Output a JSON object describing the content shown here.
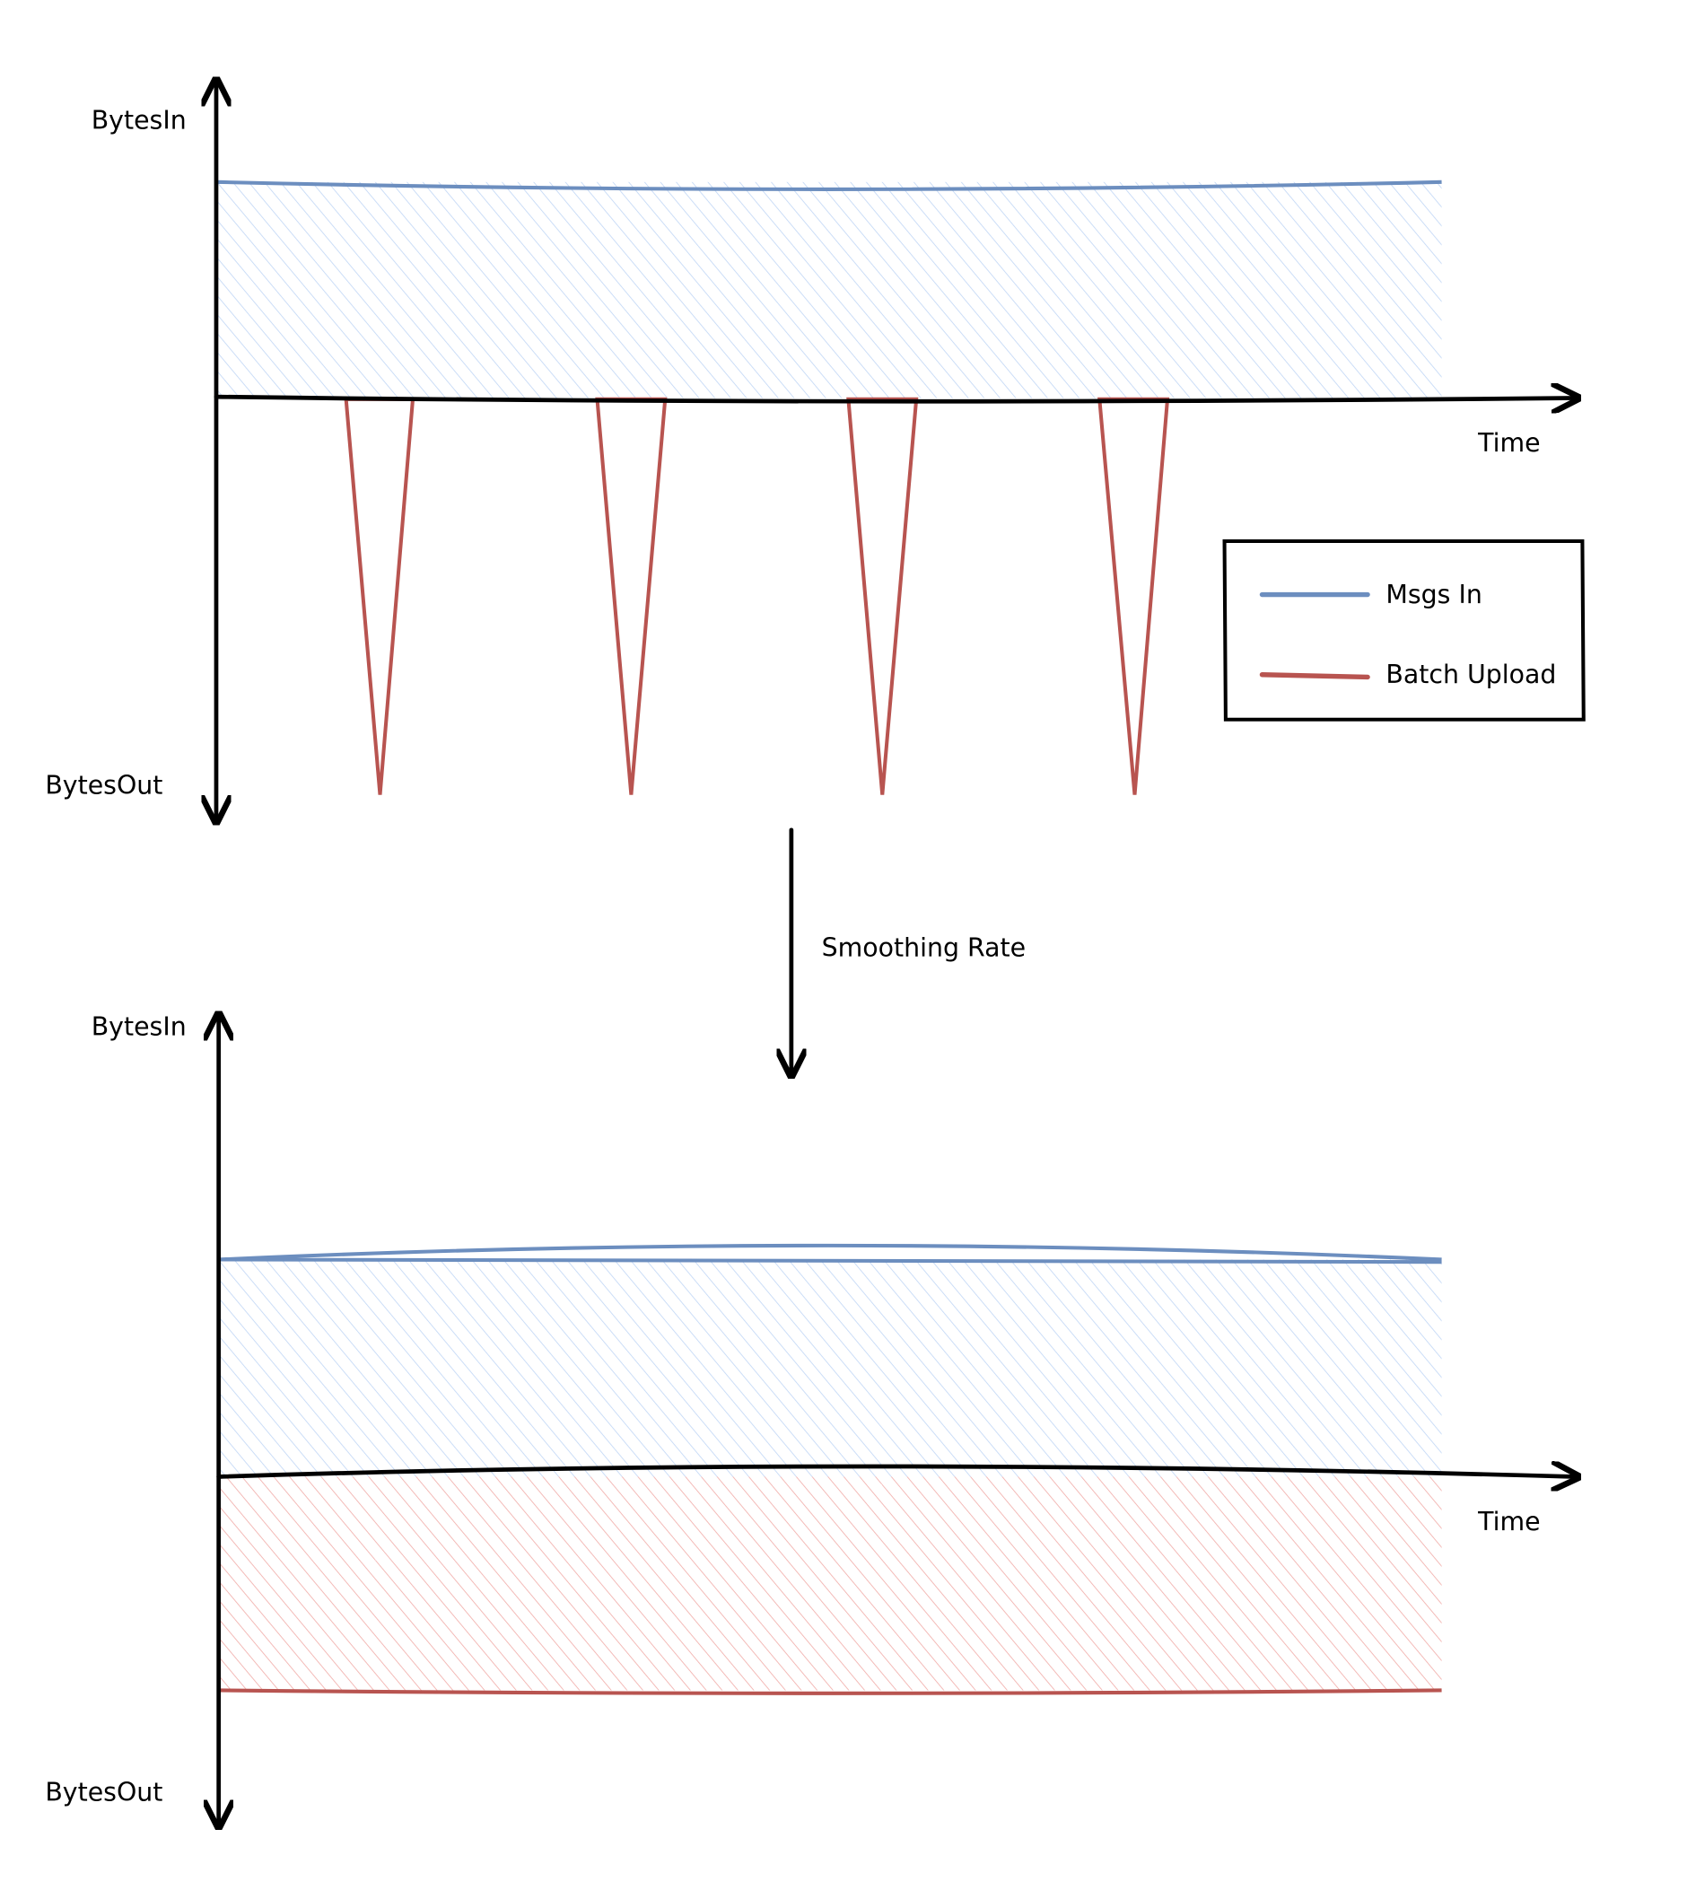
{
  "top_chart": {
    "y_axis_top_label": "BytesIn",
    "y_axis_bottom_label": "BytesOut",
    "x_axis_label": "Time"
  },
  "transition": {
    "label": "Smoothing Rate"
  },
  "bottom_chart": {
    "y_axis_top_label": "BytesIn",
    "y_axis_bottom_label": "BytesOut",
    "x_axis_label": "Time"
  },
  "legend": {
    "items": [
      {
        "label": "Msgs In",
        "color": "#6c8ebf"
      },
      {
        "label": "Batch Upload",
        "color": "#b85450"
      }
    ]
  },
  "colors": {
    "blue_fill": "#dae8fc",
    "red_fill": "#f8cecc",
    "blue_stroke": "#6c8ebf",
    "red_stroke": "#b85450"
  }
}
